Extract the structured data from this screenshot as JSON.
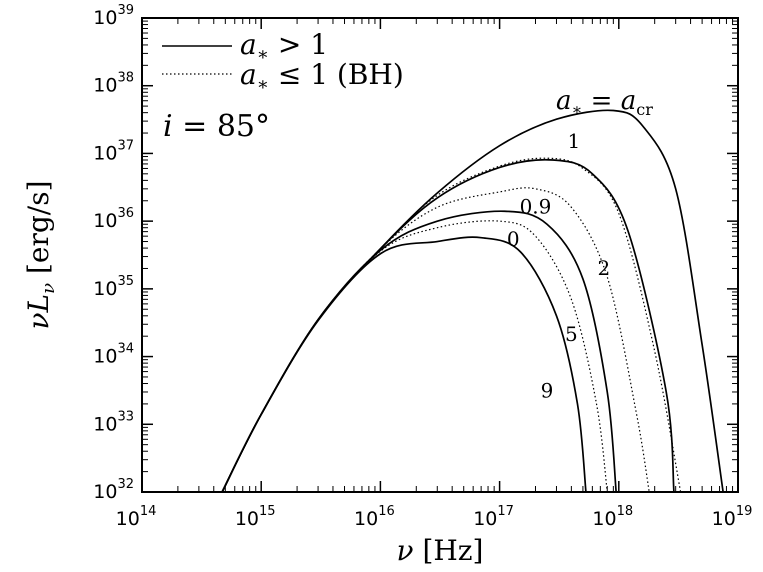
{
  "chart_data": {
    "type": "line",
    "x_scale": "log",
    "y_scale": "log",
    "xlim": [
      100000000000000.0,
      1e+19
    ],
    "ylim": [
      1e+32,
      1e+39
    ],
    "xlabel": "ν [Hz]",
    "ylabel": "νL_ν [erg/s]",
    "x_ticks": [
      {
        "base": "10",
        "exp": "14"
      },
      {
        "base": "10",
        "exp": "15"
      },
      {
        "base": "10",
        "exp": "16"
      },
      {
        "base": "10",
        "exp": "17"
      },
      {
        "base": "10",
        "exp": "18"
      },
      {
        "base": "10",
        "exp": "19"
      }
    ],
    "y_ticks": [
      {
        "base": "10",
        "exp": "32"
      },
      {
        "base": "10",
        "exp": "33"
      },
      {
        "base": "10",
        "exp": "34"
      },
      {
        "base": "10",
        "exp": "35"
      },
      {
        "base": "10",
        "exp": "36"
      },
      {
        "base": "10",
        "exp": "37"
      },
      {
        "base": "10",
        "exp": "38"
      },
      {
        "base": "10",
        "exp": "39"
      }
    ],
    "inclination_label": "i = 85°",
    "legend": {
      "placement": "top-left",
      "entries": [
        {
          "text": "a* > 1",
          "style": "solid"
        },
        {
          "text": "a* ≤ 1 (BH)",
          "style": "dotted"
        }
      ]
    },
    "series": [
      {
        "label": "a* = a_cr",
        "style": "solid",
        "points": [
          [
            470000000000000.0,
            1e+32
          ],
          [
            1000000000000000.0,
            1.4e+33
          ],
          [
            3000000000000000.0,
            3.5e+34
          ],
          [
            1e+16,
            3.9e+35
          ],
          [
            3e+16,
            2.6e+36
          ],
          [
            1e+17,
            1.3e+37
          ],
          [
            3e+17,
            3.2e+37
          ],
          [
            9e+17,
            4.3e+37
          ],
          [
            1.6e+18,
            2.5e+37
          ],
          [
            3e+18,
            3e+36
          ],
          [
            5e+18,
            1.5e+34
          ],
          [
            7.5e+18,
            1e+32
          ]
        ]
      },
      {
        "label": "1",
        "style": "dotted",
        "points": [
          [
            470000000000000.0,
            1e+32
          ],
          [
            1000000000000000.0,
            1.4e+33
          ],
          [
            3000000000000000.0,
            3.5e+34
          ],
          [
            1e+16,
            3.9e+35
          ],
          [
            3e+16,
            2.4e+36
          ],
          [
            1e+17,
            6.5e+36
          ],
          [
            2.5e+17,
            8.5e+36
          ],
          [
            5e+17,
            6e+36
          ],
          [
            1e+18,
            1.3e+36
          ],
          [
            2e+18,
            1.2e+34
          ],
          [
            3.3e+18,
            1e+32
          ]
        ]
      },
      {
        "label": "2",
        "style": "solid",
        "points": [
          [
            470000000000000.0,
            1e+32
          ],
          [
            1000000000000000.0,
            1.4e+33
          ],
          [
            3000000000000000.0,
            3.5e+34
          ],
          [
            1e+16,
            3.9e+35
          ],
          [
            3e+16,
            2.2e+36
          ],
          [
            1e+17,
            6.2e+36
          ],
          [
            2.8e+17,
            8e+36
          ],
          [
            6e+17,
            5e+36
          ],
          [
            1.2e+18,
            7e+35
          ],
          [
            2.5e+18,
            3e+33
          ],
          [
            2.9e+18,
            1e+32
          ]
        ]
      },
      {
        "label": "0.9",
        "style": "dotted",
        "points": [
          [
            470000000000000.0,
            1e+32
          ],
          [
            1000000000000000.0,
            1.4e+33
          ],
          [
            3000000000000000.0,
            3.5e+34
          ],
          [
            1e+16,
            3.9e+35
          ],
          [
            3e+16,
            1.6e+36
          ],
          [
            1e+17,
            2.7e+36
          ],
          [
            2e+17,
            3e+36
          ],
          [
            4e+17,
            1.6e+36
          ],
          [
            8e+17,
            1.5e+35
          ],
          [
            1.4e+18,
            1.5e+33
          ],
          [
            1.8e+18,
            1e+32
          ]
        ]
      },
      {
        "label": "5",
        "style": "solid",
        "points": [
          [
            470000000000000.0,
            1e+32
          ],
          [
            1000000000000000.0,
            1.4e+33
          ],
          [
            3000000000000000.0,
            3.5e+34
          ],
          [
            1e+16,
            3.7e+35
          ],
          [
            3e+16,
            1e+36
          ],
          [
            1.1e+17,
            1.4e+36
          ],
          [
            2.5e+17,
            9e+35
          ],
          [
            5e+17,
            1.4e+35
          ],
          [
            8e+17,
            3e+33
          ],
          [
            9.5e+17,
            1e+32
          ]
        ]
      },
      {
        "label": "0",
        "style": "dotted",
        "points": [
          [
            470000000000000.0,
            1e+32
          ],
          [
            1000000000000000.0,
            1.4e+33
          ],
          [
            3000000000000000.0,
            3.5e+34
          ],
          [
            1e+16,
            3.6e+35
          ],
          [
            3e+16,
            8e+35
          ],
          [
            1e+17,
            1e+36
          ],
          [
            2e+17,
            6e+35
          ],
          [
            4e+17,
            7e+34
          ],
          [
            6.5e+17,
            2e+33
          ],
          [
            8e+17,
            1e+32
          ]
        ]
      },
      {
        "label": "9",
        "style": "solid",
        "points": [
          [
            470000000000000.0,
            1e+32
          ],
          [
            1000000000000000.0,
            1.4e+33
          ],
          [
            3000000000000000.0,
            3.4e+34
          ],
          [
            1e+16,
            3.3e+35
          ],
          [
            3e+16,
            5e+35
          ],
          [
            7e+16,
            5.7e+35
          ],
          [
            1.5e+17,
            3.5e+35
          ],
          [
            3e+17,
            4e+34
          ],
          [
            4.5e+17,
            2e+33
          ],
          [
            5.3e+17,
            1e+32
          ]
        ]
      }
    ],
    "curve_labels": [
      {
        "text": "1",
        "x": 4.2e+17,
        "y": 1.2e+37
      },
      {
        "text": "0.9",
        "x": 2e+17,
        "y": 1.3e+36
      },
      {
        "text": "0",
        "x": 1.3e+17,
        "y": 4.3e+35
      },
      {
        "text": "2",
        "x": 7.5e+17,
        "y": 1.6e+35
      },
      {
        "text": "5",
        "x": 4e+17,
        "y": 1.7e+34
      },
      {
        "text": "9",
        "x": 2.5e+17,
        "y": 2.5e+33
      }
    ]
  }
}
